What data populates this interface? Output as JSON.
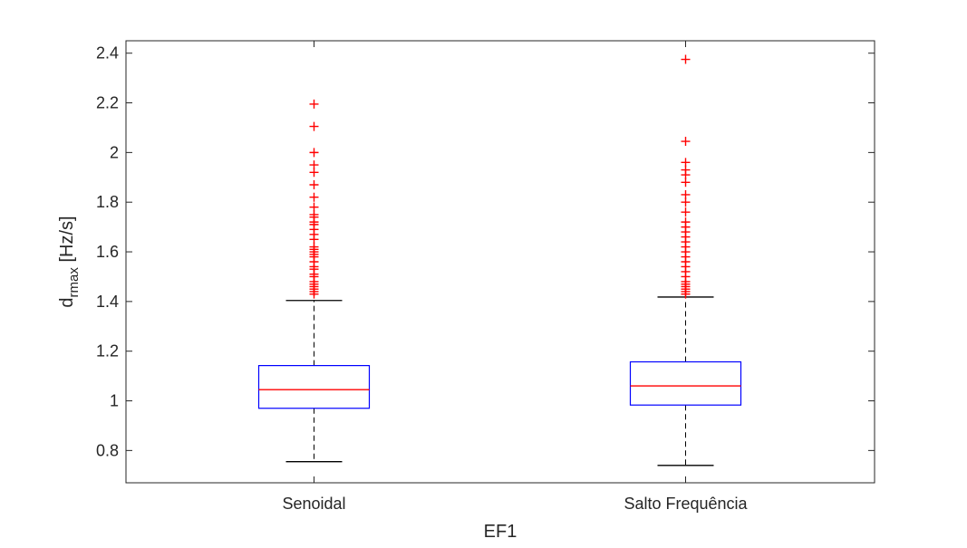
{
  "chart_data": {
    "type": "boxplot",
    "title": "",
    "xlabel": "EF1",
    "ylabel": {
      "main": "d",
      "subscript": "rmax",
      "unit": " [Hz/s]"
    },
    "ylim": [
      0.67,
      2.45
    ],
    "yticks": [
      0.8,
      1,
      1.2,
      1.4,
      1.6,
      1.8,
      2,
      2.2,
      2.4
    ],
    "ytick_labels": [
      "0.8",
      "1",
      "1.2",
      "1.4",
      "1.6",
      "1.8",
      "2",
      "2.2",
      "2.4"
    ],
    "grid": false,
    "categories": [
      "Senoidal",
      "Salto Frequência"
    ],
    "boxes": [
      {
        "category": "Senoidal",
        "whisker_low": 0.755,
        "q1": 0.97,
        "median": 1.045,
        "q3": 1.142,
        "whisker_high": 1.404,
        "outliers": [
          1.43,
          1.44,
          1.45,
          1.46,
          1.47,
          1.48,
          1.5,
          1.51,
          1.53,
          1.54,
          1.56,
          1.58,
          1.59,
          1.6,
          1.61,
          1.62,
          1.65,
          1.67,
          1.69,
          1.71,
          1.72,
          1.74,
          1.75,
          1.78,
          1.82,
          1.87,
          1.92,
          1.95,
          2.0,
          2.105,
          2.195
        ]
      },
      {
        "category": "Salto Frequência",
        "whisker_low": 0.74,
        "q1": 0.983,
        "median": 1.06,
        "q3": 1.157,
        "whisker_high": 1.418,
        "outliers": [
          1.43,
          1.44,
          1.45,
          1.46,
          1.47,
          1.48,
          1.5,
          1.52,
          1.54,
          1.56,
          1.58,
          1.6,
          1.62,
          1.64,
          1.66,
          1.68,
          1.7,
          1.72,
          1.76,
          1.8,
          1.83,
          1.88,
          1.91,
          1.93,
          1.96,
          2.045,
          2.375
        ]
      }
    ],
    "colors": {
      "box": "#0000ff",
      "median": "#ff0000",
      "outlier": "#ff0000",
      "whisker": "#000000",
      "axis": "#262626"
    }
  }
}
